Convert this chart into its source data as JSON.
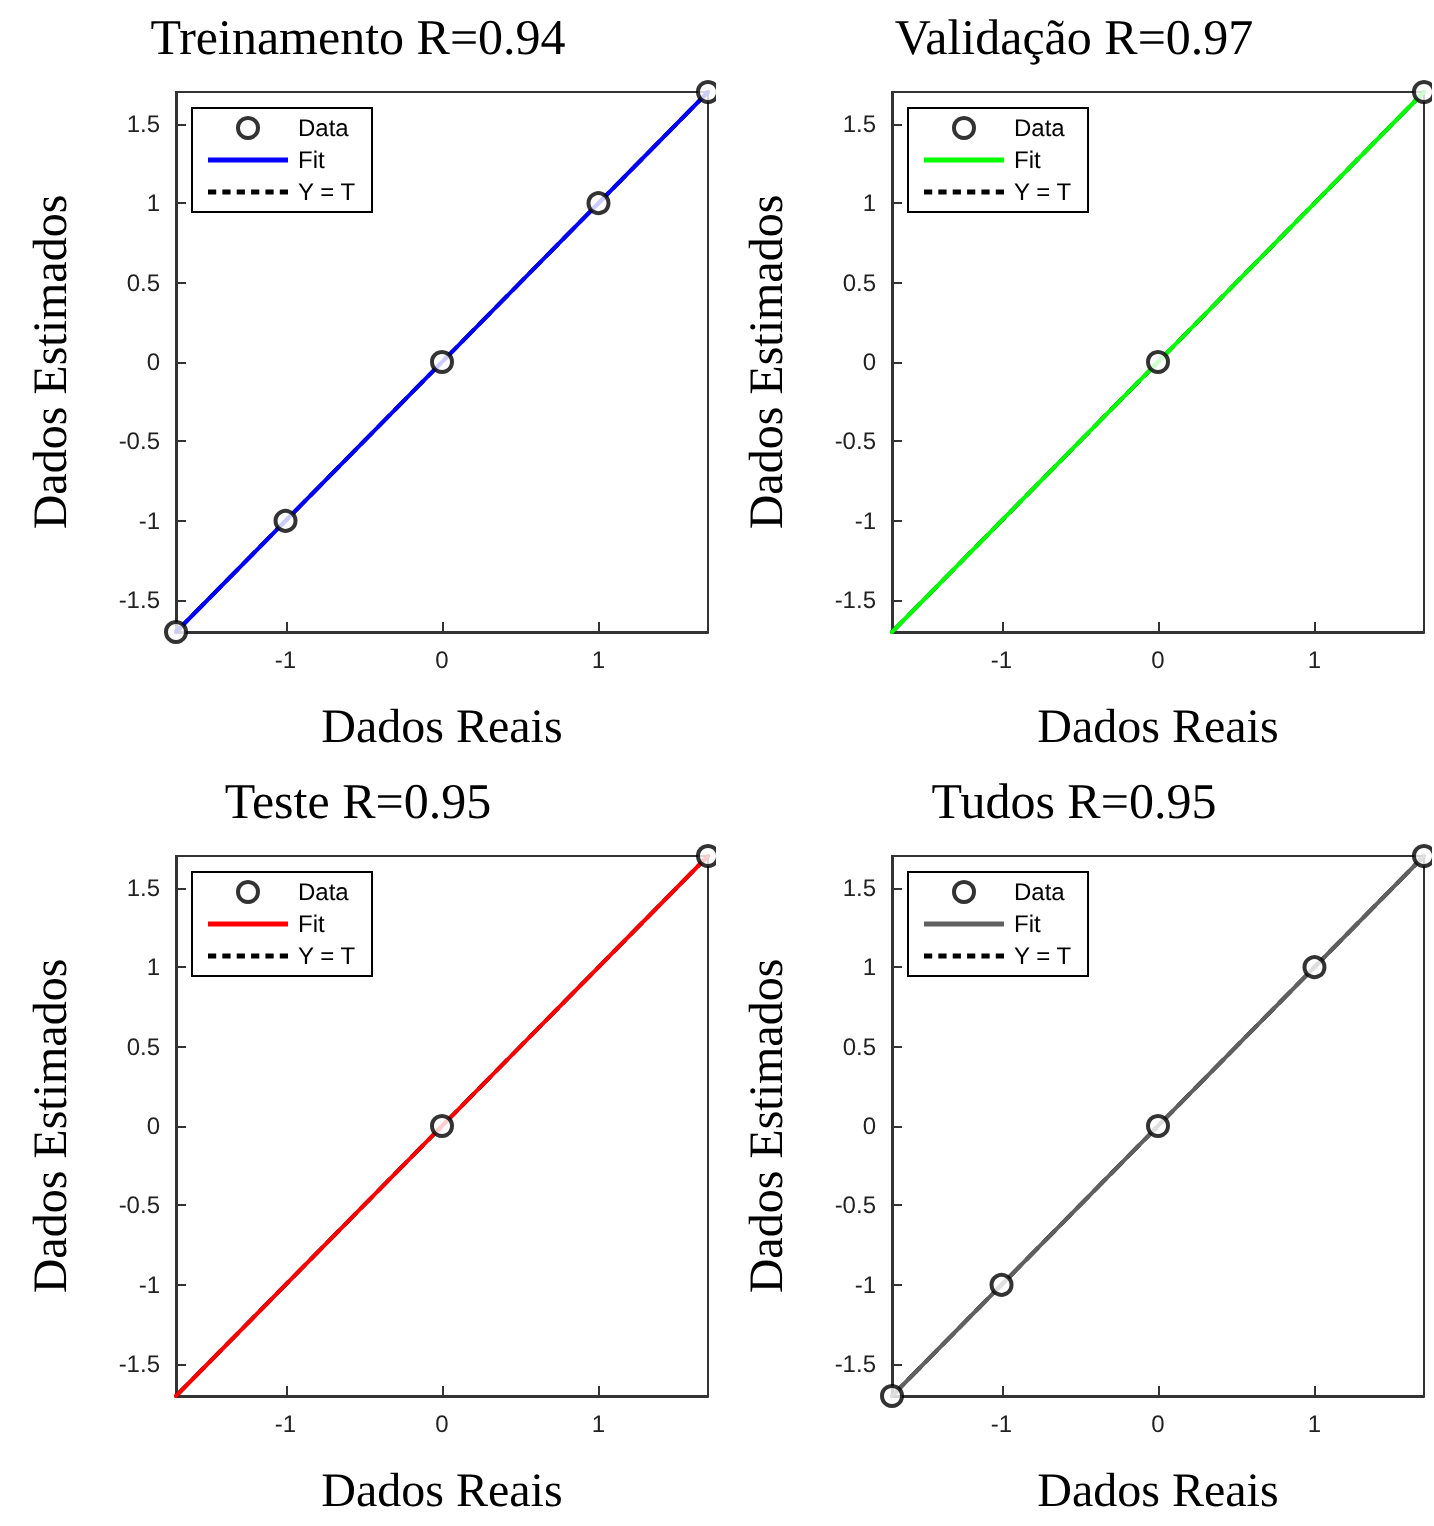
{
  "chart_data": [
    {
      "type": "scatter",
      "title": "Treinamento R=0.94",
      "xlabel": "Dados Reais",
      "ylabel": "Dados Estimados",
      "xlim": [
        -1.7,
        1.7
      ],
      "ylim": [
        -1.7,
        1.7
      ],
      "xticks": [
        -1,
        0,
        1
      ],
      "yticks": [
        -1.5,
        -1,
        -0.5,
        0,
        0.5,
        1,
        1.5
      ],
      "grid": false,
      "legend": "top left",
      "series": [
        {
          "name": "Y = T",
          "type": "line",
          "line_style": "dashed",
          "color": "#000000",
          "x": [
            -1.7,
            1.7
          ],
          "values": [
            -1.7,
            1.7
          ]
        },
        {
          "name": "Fit",
          "type": "line",
          "line_style": "solid",
          "color": "#0000ff",
          "x": [
            -1.7,
            1.7
          ],
          "values": [
            -1.7,
            1.7
          ]
        },
        {
          "name": "Data",
          "type": "scatter",
          "marker": "circle",
          "color": "#000000",
          "x": [
            -1.7,
            -1,
            0,
            1,
            1.7
          ],
          "values": [
            -1.7,
            -1,
            0,
            1,
            1.7
          ]
        }
      ]
    },
    {
      "type": "scatter",
      "title": "Validação R=0.97",
      "xlabel": "Dados Reais",
      "ylabel": "Dados Estimados",
      "xlim": [
        -1.7,
        1.7
      ],
      "ylim": [
        -1.7,
        1.7
      ],
      "xticks": [
        -1,
        0,
        1
      ],
      "yticks": [
        -1.5,
        -1,
        -0.5,
        0,
        0.5,
        1,
        1.5
      ],
      "grid": false,
      "legend": "top left",
      "series": [
        {
          "name": "Y = T",
          "type": "line",
          "line_style": "dashed",
          "color": "#000000",
          "x": [
            -1.7,
            1.7
          ],
          "values": [
            -1.7,
            1.7
          ]
        },
        {
          "name": "Fit",
          "type": "line",
          "line_style": "solid",
          "color": "#00ff00",
          "x": [
            -1.7,
            1.7
          ],
          "values": [
            -1.7,
            1.7
          ]
        },
        {
          "name": "Data",
          "type": "scatter",
          "marker": "circle",
          "color": "#000000",
          "x": [
            0,
            1.7
          ],
          "values": [
            0,
            1.7
          ]
        }
      ]
    },
    {
      "type": "scatter",
      "title": "Teste R=0.95",
      "xlabel": "Dados Reais",
      "ylabel": "Dados Estimados",
      "xlim": [
        -1.7,
        1.7
      ],
      "ylim": [
        -1.7,
        1.7
      ],
      "xticks": [
        -1,
        0,
        1
      ],
      "yticks": [
        -1.5,
        -1,
        -0.5,
        0,
        0.5,
        1,
        1.5
      ],
      "grid": false,
      "legend": "top left",
      "series": [
        {
          "name": "Y = T",
          "type": "line",
          "line_style": "dashed",
          "color": "#000000",
          "x": [
            -1.7,
            1.7
          ],
          "values": [
            -1.7,
            1.7
          ]
        },
        {
          "name": "Fit",
          "type": "line",
          "line_style": "solid",
          "color": "#ff0000",
          "x": [
            -1.7,
            1.7
          ],
          "values": [
            -1.7,
            1.7
          ]
        },
        {
          "name": "Data",
          "type": "scatter",
          "marker": "circle",
          "color": "#000000",
          "x": [
            0,
            1.7
          ],
          "values": [
            0,
            1.7
          ]
        }
      ]
    },
    {
      "type": "scatter",
      "title": "Tudos R=0.95",
      "xlabel": "Dados Reais",
      "ylabel": "Dados Estimados",
      "xlim": [
        -1.7,
        1.7
      ],
      "ylim": [
        -1.7,
        1.7
      ],
      "xticks": [
        -1,
        0,
        1
      ],
      "yticks": [
        -1.5,
        -1,
        -0.5,
        0,
        0.5,
        1,
        1.5
      ],
      "grid": false,
      "legend": "top left",
      "series": [
        {
          "name": "Y = T",
          "type": "line",
          "line_style": "dashed",
          "color": "#000000",
          "x": [
            -1.7,
            1.7
          ],
          "values": [
            -1.7,
            1.7
          ]
        },
        {
          "name": "Fit",
          "type": "line",
          "line_style": "solid",
          "color": "#606060",
          "x": [
            -1.7,
            1.7
          ],
          "values": [
            -1.7,
            1.7
          ]
        },
        {
          "name": "Data",
          "type": "scatter",
          "marker": "circle",
          "color": "#000000",
          "x": [
            -1.7,
            -1,
            0,
            1,
            1.7
          ],
          "values": [
            -1.7,
            -1,
            0,
            1,
            1.7
          ]
        }
      ]
    }
  ]
}
